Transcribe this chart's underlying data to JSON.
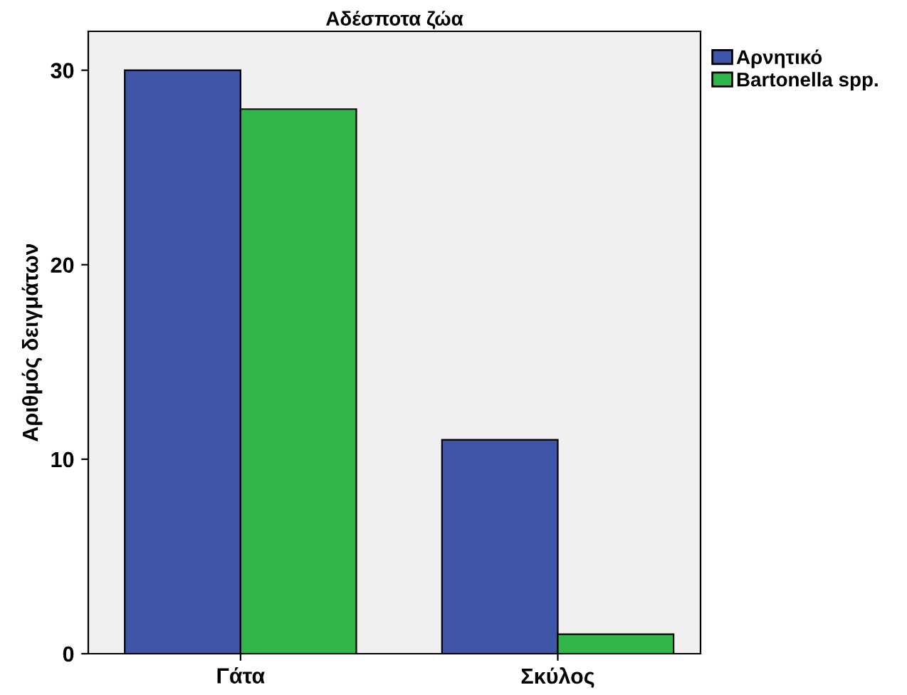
{
  "chart_data": {
    "type": "bar",
    "title": "Αδέσποτα ζώα",
    "ylabel": "Αριθμός δειγμάτων",
    "categories": [
      "Γάτα",
      "Σκύλος"
    ],
    "series": [
      {
        "name": "Αρνητικό",
        "color": "#3e55a8",
        "values": [
          30,
          11
        ]
      },
      {
        "name": "Bartonella spp.",
        "color": "#2fb54a",
        "values": [
          28,
          1
        ]
      }
    ],
    "ylim": [
      0,
      32
    ],
    "yticks": [
      0,
      10,
      20,
      30
    ],
    "grid": false,
    "legend": "top right"
  }
}
